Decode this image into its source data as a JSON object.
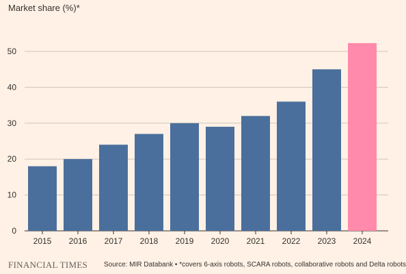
{
  "chart_data": {
    "type": "bar",
    "title": "Market share (%)*",
    "xlabel": "",
    "ylabel": "",
    "categories": [
      "2015",
      "2016",
      "2017",
      "2018",
      "2019",
      "2020",
      "2021",
      "2022",
      "2023",
      "2024"
    ],
    "values": [
      18,
      20,
      24,
      27,
      30,
      29,
      32,
      36,
      45,
      52.3
    ],
    "ylim": [
      0,
      55
    ],
    "yticks": [
      0,
      10,
      20,
      30,
      40,
      50
    ],
    "grid": true,
    "legend": "none",
    "colors": {
      "bar": "#4a6f9c",
      "highlight_bar": "#ff8aab",
      "grid": "#cfc4b8",
      "background": "#fff1e5"
    },
    "highlight_index": 9
  },
  "footer": {
    "brand": "FINANCIAL TIMES",
    "source": "Source: MIR Databank • *covers 6-axis robots, SCARA robots, collaborative robots and Delta robots"
  }
}
